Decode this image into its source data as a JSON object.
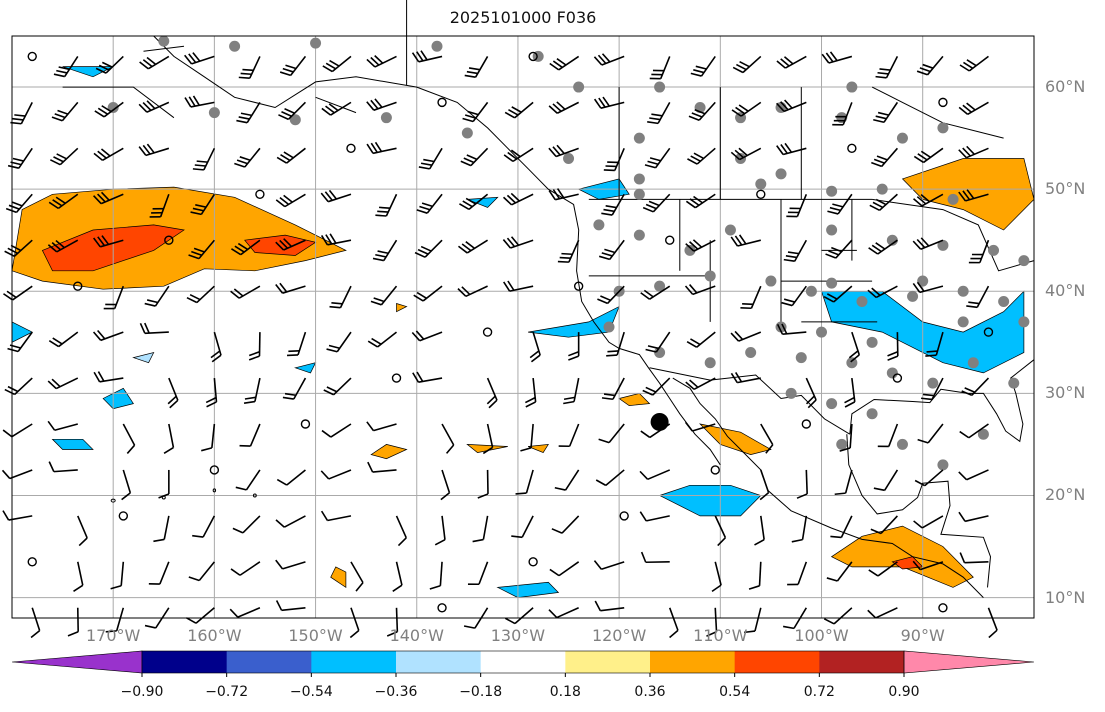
{
  "title": "2025101000 F036",
  "map": {
    "projection": "plate-carree",
    "lon_range": [
      -180,
      -79
    ],
    "lat_range": [
      8,
      65
    ],
    "land_color": "#ffffff",
    "ocean_color": "#ffffff",
    "gridline_color": "#aaaaaa",
    "coastline_color": "#000000",
    "barb_color": "#000000",
    "station_dot_color": "#808080"
  },
  "lat_labels": [
    "60°N",
    "50°N",
    "40°N",
    "30°N",
    "20°N",
    "10°N"
  ],
  "lon_labels": [
    "170°W",
    "160°W",
    "150°W",
    "140°W",
    "130°W",
    "120°W",
    "110°W",
    "100°W",
    "90°W"
  ],
  "colorbar": {
    "levels": [
      -0.9,
      -0.72,
      -0.54,
      -0.36,
      -0.18,
      0.18,
      0.36,
      0.54,
      0.72,
      0.9
    ],
    "tick_labels": [
      "−0.90",
      "−0.72",
      "−0.54",
      "−0.36",
      "−0.18",
      "0.18",
      "0.36",
      "0.54",
      "0.72",
      "0.90"
    ],
    "colors": [
      "#9932cc",
      "#00008b",
      "#3a5fcd",
      "#00bfff",
      "#b0e2ff",
      "#ffffff",
      "#fff08a",
      "#ffa500",
      "#ff4500",
      "#b22222",
      "#ff88aa"
    ],
    "extend": "both"
  },
  "highlight_point": {
    "lon": -116,
    "lat": 27.2,
    "color": "#000000"
  }
}
